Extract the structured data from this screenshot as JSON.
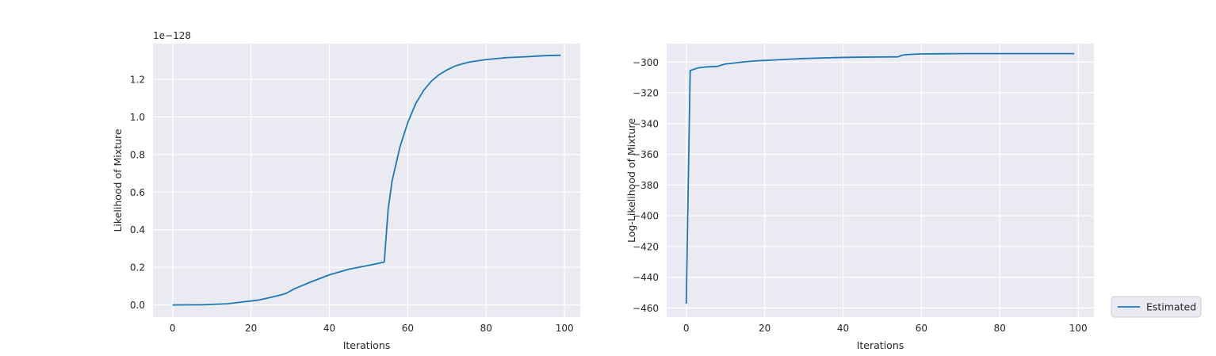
{
  "chart_data": [
    {
      "type": "line",
      "xlabel": "Iterations",
      "ylabel": "Likelihood of Mixture",
      "offset_label": "1e−128",
      "xlim": [
        -5,
        104
      ],
      "ylim": [
        -0.065,
        1.39
      ],
      "xticks": [
        0,
        20,
        40,
        60,
        80,
        100
      ],
      "yticks": [
        0.0,
        0.2,
        0.4,
        0.6,
        0.8,
        1.0,
        1.2
      ],
      "ytick_labels": [
        "0.0",
        "0.2",
        "0.4",
        "0.6",
        "0.8",
        "1.0",
        "1.2"
      ],
      "grid": true,
      "color": "#1f77b4",
      "series": [
        {
          "x": [
            0,
            8,
            14,
            18,
            22,
            25,
            28,
            29,
            31,
            35,
            40,
            45,
            50,
            54,
            55,
            56,
            58,
            60,
            62,
            64,
            66,
            68,
            70,
            72,
            74,
            76,
            80,
            85,
            90,
            95,
            99
          ],
          "values": [
            0.0,
            0.001,
            0.006,
            0.016,
            0.026,
            0.04,
            0.055,
            0.062,
            0.085,
            0.12,
            0.16,
            0.19,
            0.21,
            0.228,
            0.51,
            0.66,
            0.84,
            0.97,
            1.07,
            1.14,
            1.19,
            1.225,
            1.25,
            1.27,
            1.283,
            1.293,
            1.305,
            1.315,
            1.32,
            1.326,
            1.328
          ]
        }
      ]
    },
    {
      "type": "line",
      "xlabel": "Iterations",
      "ylabel": "Log-Likelihood of Mixture",
      "xlim": [
        -5,
        104
      ],
      "ylim": [
        -466,
        -288
      ],
      "xticks": [
        0,
        20,
        40,
        60,
        80,
        100
      ],
      "yticks": [
        -300,
        -320,
        -340,
        -360,
        -380,
        -400,
        -420,
        -440,
        -460
      ],
      "ytick_labels": [
        "−300",
        "−320",
        "−340",
        "−360",
        "−380",
        "−400",
        "−420",
        "−440",
        "−460"
      ],
      "grid": true,
      "color": "#1f77b4",
      "series": [
        {
          "name": "Estimated",
          "x": [
            0,
            1,
            3,
            5,
            8,
            9,
            10,
            12,
            15,
            18,
            22,
            26,
            30,
            35,
            40,
            45,
            50,
            54,
            55,
            56,
            58,
            60,
            65,
            70,
            80,
            90,
            99
          ],
          "values": [
            -457.3,
            -305.5,
            -303.8,
            -303.2,
            -302.8,
            -301.9,
            -301.3,
            -300.7,
            -299.8,
            -299.2,
            -298.7,
            -298.2,
            -297.7,
            -297.3,
            -297.0,
            -296.8,
            -296.7,
            -296.6,
            -295.6,
            -295.2,
            -294.9,
            -294.7,
            -294.6,
            -294.5,
            -294.5,
            -294.5,
            -294.5
          ]
        }
      ],
      "legend": {
        "placement": "outside-bottom-right"
      }
    }
  ]
}
